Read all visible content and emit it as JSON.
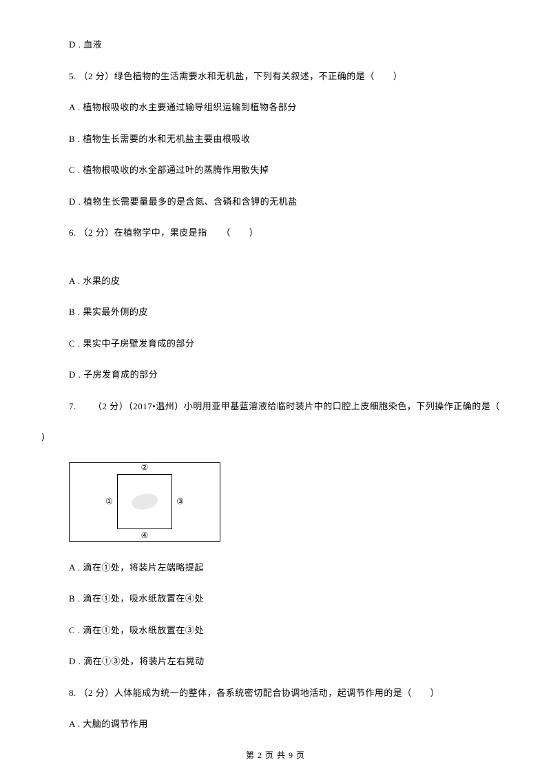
{
  "q4": {
    "optD": "D . 血液"
  },
  "q5": {
    "stem": "5. （2 分）绿色植物的生活需要水和无机盐，下列有关叙述，不正确的是（　　）",
    "optA": "A . 植物根吸收的水主要通过输导组织运输到植物各部分",
    "optB": "B . 植物生长需要的水和无机盐主要由根吸收",
    "optC": "C . 植物根吸收的水全部通过叶的蒸腾作用散失掉",
    "optD": "D . 植物生长需要量最多的是含氮、含磷和含钾的无机盐"
  },
  "q6": {
    "stem": "6. （2 分）在植物学中，果皮是指　　（　　）",
    "optA": "A . 水果的皮",
    "optB": "B . 果实最外侧的皮",
    "optC": "C . 果实中子房壁发育成的部分",
    "optD": "D . 子房发育成的部分"
  },
  "q7": {
    "stem": "7. 　　（2 分）（2017•温州）小明用亚甲基蓝溶液给临时装片中的口腔上皮细胞染色，下列操作正确的是（　",
    "close": "）",
    "labels": {
      "top": "②",
      "bottom": "④",
      "left": "①",
      "right": "③"
    },
    "optA": "A . 滴在①处，将装片左端略提起",
    "optB": "B . 滴在①处，吸水纸放置在④处",
    "optC": "C . 滴在①处，吸水纸放置在③处",
    "optD": "D . 滴在①③处，将装片左右晃动"
  },
  "q8": {
    "stem": "8. （2 分）人体能成为统一的整体，各系统密切配合协调地活动，起调节作用的是（　　）",
    "optA": "A . 大脑的调节作用"
  },
  "footer": "第 2 页 共 9 页"
}
